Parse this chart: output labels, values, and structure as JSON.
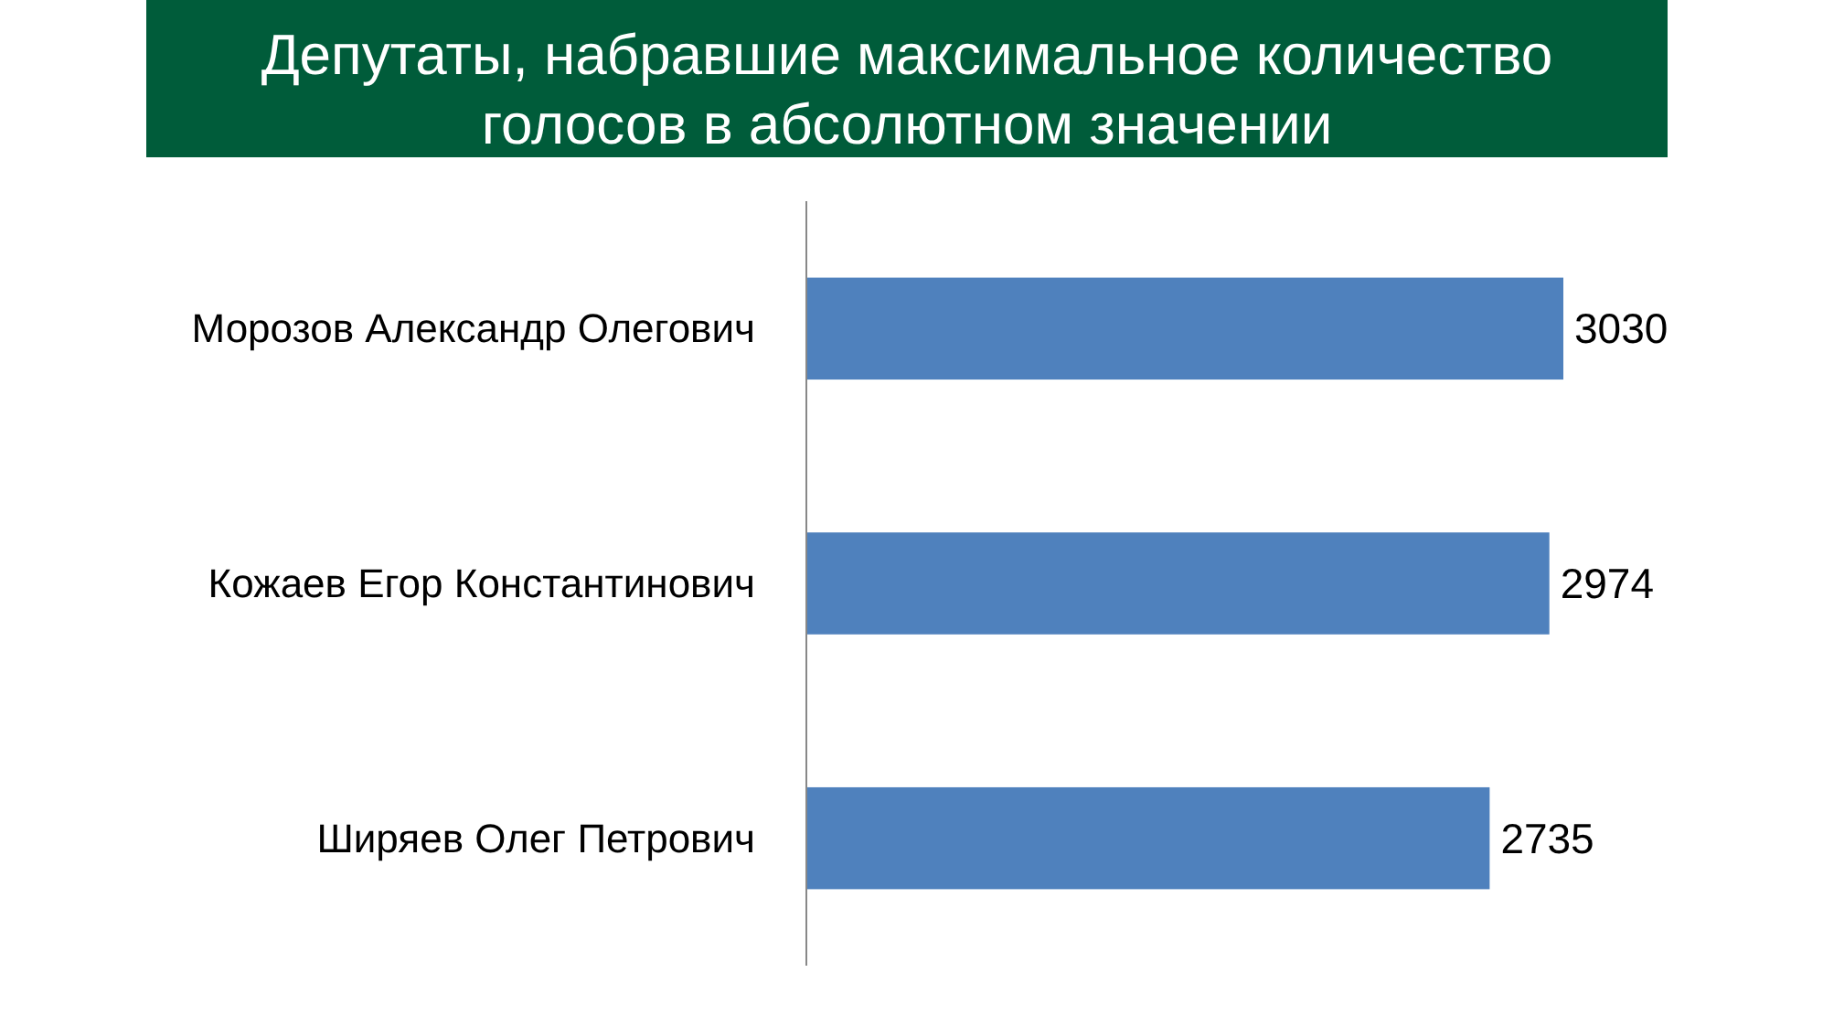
{
  "chart_data": {
    "type": "bar",
    "orientation": "horizontal",
    "title": "Депутаты, набравшие максимальное количество голосов в абсолютном значении",
    "categories": [
      "Морозов Александр Олегович",
      "Кожаев Егор Константинович",
      "Ширяев Олег Петрович"
    ],
    "values": [
      3030,
      2974,
      2735
    ],
    "color": "#4f81bd",
    "tick_labels": "y",
    "data_labels": true
  }
}
